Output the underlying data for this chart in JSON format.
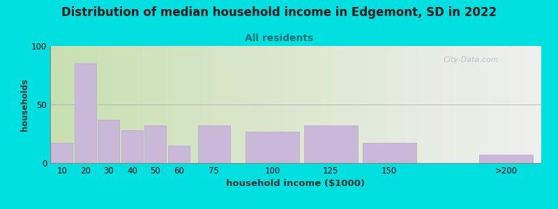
{
  "title": "Distribution of median household income in Edgemont, SD in 2022",
  "subtitle": "All residents",
  "xlabel": "household income ($1000)",
  "ylabel": "households",
  "bar_centers": [
    10,
    20,
    30,
    40,
    50,
    60,
    75,
    100,
    125,
    150,
    200
  ],
  "bar_widths": [
    10,
    10,
    10,
    10,
    10,
    10,
    15,
    25,
    25,
    25,
    25
  ],
  "values": [
    17,
    85,
    37,
    28,
    32,
    15,
    32,
    27,
    32,
    17,
    7
  ],
  "xtick_positions": [
    10,
    20,
    30,
    40,
    50,
    60,
    75,
    100,
    125,
    150,
    200
  ],
  "xtick_labels": [
    "10",
    "20",
    "30",
    "40",
    "50",
    "60",
    "75",
    "100",
    "125",
    "150",
    ">200"
  ],
  "bar_color": "#c9b8d8",
  "bar_edge_color": "#b8a8cc",
  "ylim": [
    0,
    100
  ],
  "xlim": [
    5,
    215
  ],
  "yticks": [
    0,
    50,
    100
  ],
  "background_outer": "#00e0e0",
  "background_inner_topleft": "#c8e0b0",
  "background_inner_bottomright": "#f0f0f0",
  "title_fontsize": 12,
  "subtitle_fontsize": 10,
  "subtitle_color": "#007070",
  "watermark": "City-Data.com",
  "watermark_color": "#b8b8c8",
  "grid_color": "#b0b0b0"
}
